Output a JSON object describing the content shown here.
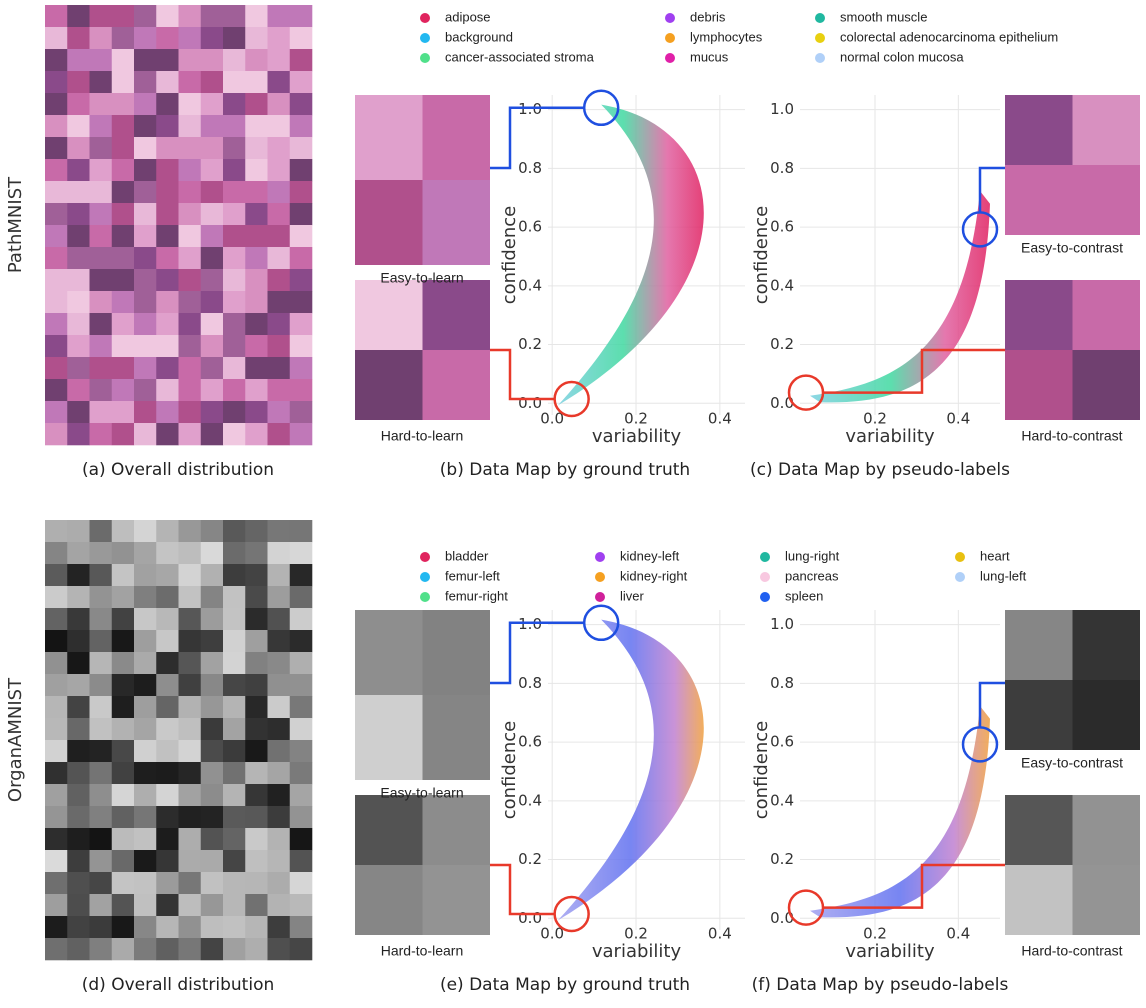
{
  "rows": [
    {
      "dataset": "PathMNIST",
      "overview_caption": "(a) Overall distribution",
      "legend": [
        [
          {
            "name": "adipose",
            "color": "#e0245e"
          },
          {
            "name": "background",
            "color": "#22b8f0"
          },
          {
            "name": "cancer-associated stroma",
            "color": "#50e08a"
          }
        ],
        [
          {
            "name": "debris",
            "color": "#a040f0"
          },
          {
            "name": "lymphocytes",
            "color": "#f5a020"
          },
          {
            "name": "mucus",
            "color": "#e020a8"
          }
        ],
        [
          {
            "name": "smooth muscle",
            "color": "#20b8a0"
          },
          {
            "name": "colorectal adenocarcinoma epithelium",
            "color": "#e8d010"
          },
          {
            "name": "normal colon mucosa",
            "color": "#b0d0f8"
          }
        ]
      ],
      "maps": [
        {
          "caption": "(b) Data Map by ground truth",
          "xlabel": "variability",
          "ylabel": "confidence",
          "xlim": [
            -0.01,
            0.46
          ],
          "ylim": [
            -0.04,
            1.05
          ],
          "xticks": [
            {
              "value": 0,
              "label": "0.0"
            },
            0.2,
            0.4
          ],
          "yticks": [
            {
              "value": 0,
              "label": "0.0"
            },
            0.2,
            0.4,
            0.6,
            0.8,
            {
              "value": 1,
              "label": "1.0"
            }
          ],
          "easy_label": "Easy-to-learn",
          "hard_label": "Hard-to-learn"
        },
        {
          "caption": "(c) Data Map by pseudo-labels",
          "xlabel": "variability",
          "ylabel": "confidence",
          "xlim": [
            0.02,
            0.5
          ],
          "ylim": [
            -0.04,
            1.05
          ],
          "xticks": [
            0.2,
            0.4
          ],
          "yticks": [
            {
              "value": 0,
              "label": "0.0"
            },
            0.2,
            0.4,
            0.6,
            0.8,
            {
              "value": 1,
              "label": "1.0"
            }
          ],
          "easy_label": "Easy-to-contrast",
          "hard_label": "Hard-to-contrast"
        }
      ]
    },
    {
      "dataset": "OrganAMNIST",
      "overview_caption": "(d) Overall distribution",
      "legend": [
        [
          {
            "name": "bladder",
            "color": "#e0245e"
          },
          {
            "name": "femur-left",
            "color": "#22b8f0"
          },
          {
            "name": "femur-right",
            "color": "#50e08a"
          }
        ],
        [
          {
            "name": "kidney-left",
            "color": "#a040f0"
          },
          {
            "name": "kidney-right",
            "color": "#f5a020"
          },
          {
            "name": "liver",
            "color": "#d0209a"
          }
        ],
        [
          {
            "name": "lung-right",
            "color": "#20b8a0"
          },
          {
            "name": "pancreas",
            "color": "#f8c8e0"
          },
          {
            "name": "spleen",
            "color": "#2060f0"
          }
        ],
        [
          {
            "name": "heart",
            "color": "#e8c010"
          },
          {
            "name": "lung-left",
            "color": "#b0d0f8"
          }
        ]
      ],
      "maps": [
        {
          "caption": "(e) Data Map by ground truth",
          "xlabel": "variability",
          "ylabel": "confidence",
          "xlim": [
            -0.01,
            0.46
          ],
          "ylim": [
            -0.04,
            1.05
          ],
          "xticks": [
            {
              "value": 0,
              "label": "0.0"
            },
            0.2,
            0.4
          ],
          "yticks": [
            {
              "value": 0,
              "label": "0.0"
            },
            0.2,
            0.4,
            0.6,
            0.8,
            {
              "value": 1,
              "label": "1.0"
            }
          ],
          "easy_label": "Easy-to-learn",
          "hard_label": "Hard-to-learn"
        },
        {
          "caption": "(f) Data Map by pseudo-labels",
          "xlabel": "variability",
          "ylabel": "confidence",
          "xlim": [
            0.02,
            0.5
          ],
          "ylim": [
            -0.04,
            1.05
          ],
          "xticks": [
            0.2,
            0.4
          ],
          "yticks": [
            {
              "value": 0,
              "label": "0.0"
            },
            0.2,
            0.4,
            0.6,
            0.8,
            {
              "value": 1,
              "label": "1.0"
            }
          ],
          "easy_label": "Easy-to-contrast",
          "hard_label": "Hard-to-contrast"
        }
      ]
    }
  ]
}
